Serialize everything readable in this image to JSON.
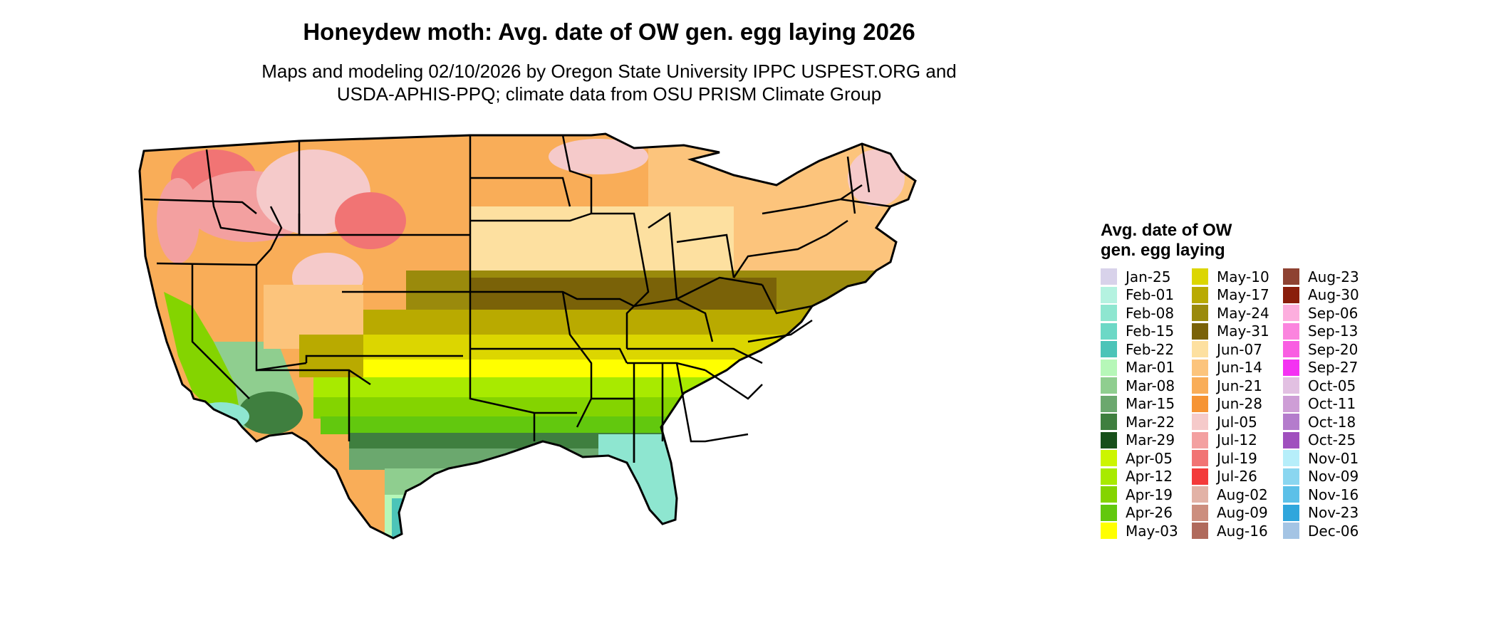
{
  "title": "Honeydew moth: Avg. date of OW gen. egg laying 2026",
  "subtitle_line1": "Maps and modeling 02/10/2026 by Oregon State University IPPC USPEST.ORG and",
  "subtitle_line2": "USDA-APHIS-PPQ; climate data from OSU PRISM Climate Group",
  "legend": {
    "title_line1": "Avg. date of OW",
    "title_line2": "gen. egg laying",
    "columns": [
      [
        {
          "label": "Jan-25",
          "color": "#d8d2ea"
        },
        {
          "label": "Feb-01",
          "color": "#b4f2e0"
        },
        {
          "label": "Feb-08",
          "color": "#8ee6d0"
        },
        {
          "label": "Feb-15",
          "color": "#6cd8c6"
        },
        {
          "label": "Feb-22",
          "color": "#4cc4b8"
        },
        {
          "label": "Mar-01",
          "color": "#b6f7b8"
        },
        {
          "label": "Mar-08",
          "color": "#8fce8f"
        },
        {
          "label": "Mar-15",
          "color": "#6ba86e"
        },
        {
          "label": "Mar-22",
          "color": "#3f7f3f"
        },
        {
          "label": "Mar-29",
          "color": "#17501a"
        },
        {
          "label": "Apr-05",
          "color": "#ccf500"
        },
        {
          "label": "Apr-12",
          "color": "#a8ea00"
        },
        {
          "label": "Apr-19",
          "color": "#84d400"
        },
        {
          "label": "Apr-26",
          "color": "#62c80e"
        },
        {
          "label": "May-03",
          "color": "#ffff00"
        }
      ],
      [
        {
          "label": "May-10",
          "color": "#dcd600"
        },
        {
          "label": "May-17",
          "color": "#b9aa00"
        },
        {
          "label": "May-24",
          "color": "#9a8a0c"
        },
        {
          "label": "May-31",
          "color": "#7a6208"
        },
        {
          "label": "Jun-07",
          "color": "#fde0a0"
        },
        {
          "label": "Jun-14",
          "color": "#fcc47c"
        },
        {
          "label": "Jun-21",
          "color": "#f9ad58"
        },
        {
          "label": "Jun-28",
          "color": "#f69434"
        },
        {
          "label": "Jul-05",
          "color": "#f5caca"
        },
        {
          "label": "Jul-12",
          "color": "#f3a0a0"
        },
        {
          "label": "Jul-19",
          "color": "#f17474"
        },
        {
          "label": "Jul-26",
          "color": "#f33a3a"
        },
        {
          "label": "Aug-02",
          "color": "#e2b2a6"
        },
        {
          "label": "Aug-09",
          "color": "#cc8e7e"
        },
        {
          "label": "Aug-16",
          "color": "#b06a5c"
        }
      ],
      [
        {
          "label": "Aug-23",
          "color": "#8e4232"
        },
        {
          "label": "Aug-30",
          "color": "#8a1e0c"
        },
        {
          "label": "Sep-06",
          "color": "#fdaede"
        },
        {
          "label": "Sep-13",
          "color": "#fb84de"
        },
        {
          "label": "Sep-20",
          "color": "#f95ee2"
        },
        {
          "label": "Sep-27",
          "color": "#f432f2"
        },
        {
          "label": "Oct-05",
          "color": "#e2c0e2"
        },
        {
          "label": "Oct-11",
          "color": "#ce9ed6"
        },
        {
          "label": "Oct-18",
          "color": "#b47ccc"
        },
        {
          "label": "Oct-25",
          "color": "#a050be"
        },
        {
          "label": "Nov-01",
          "color": "#b6eefa"
        },
        {
          "label": "Nov-09",
          "color": "#8ad6f0"
        },
        {
          "label": "Nov-16",
          "color": "#5cc0e8"
        },
        {
          "label": "Nov-23",
          "color": "#30a6dc"
        },
        {
          "label": "Dec-06",
          "color": "#a4c4e4"
        }
      ]
    ]
  },
  "map": {
    "region": "Contiguous United States",
    "color_scheme": "date bands by latitude/elevation"
  }
}
